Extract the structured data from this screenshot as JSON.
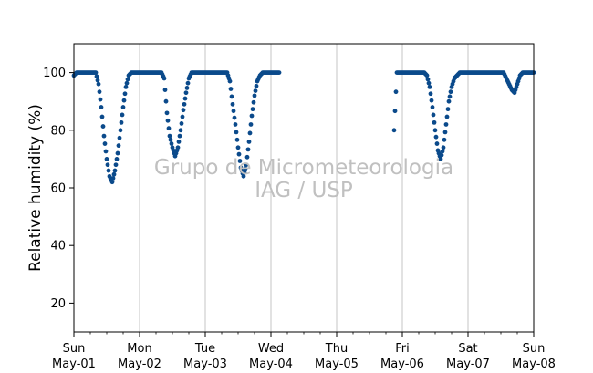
{
  "chart_data": {
    "type": "scatter",
    "ylabel": "Relative humidity (%)",
    "ylim": [
      10,
      110
    ],
    "yticks": [
      20,
      40,
      60,
      80,
      100
    ],
    "xlim": [
      "2022-05-01T00:00",
      "2022-05-08T00:00"
    ],
    "xticks": [
      {
        "date": "2022-05-01",
        "day": "Sun",
        "label": "May-01"
      },
      {
        "date": "2022-05-02",
        "day": "Mon",
        "label": "May-02"
      },
      {
        "date": "2022-05-03",
        "day": "Tue",
        "label": "May-03"
      },
      {
        "date": "2022-05-04",
        "day": "Wed",
        "label": "May-04"
      },
      {
        "date": "2022-05-05",
        "day": "Thu",
        "label": "May-05"
      },
      {
        "date": "2022-05-06",
        "day": "Fri",
        "label": "May-06"
      },
      {
        "date": "2022-05-07",
        "day": "Sat",
        "label": "May-07"
      },
      {
        "date": "2022-05-08",
        "day": "Sun",
        "label": "May-08"
      }
    ],
    "grid": "x",
    "color": "#0b4a8b",
    "watermark": [
      "Grupo de Micrometeorologia",
      "IAG / USP"
    ],
    "series": [
      {
        "x": [
          "2022-05-01T00:00",
          "2022-05-01T01:00",
          "2022-05-01T02:00",
          "2022-05-01T03:00",
          "2022-05-01T04:00",
          "2022-05-01T05:00",
          "2022-05-01T06:00",
          "2022-05-01T07:00",
          "2022-05-01T08:00",
          "2022-05-01T09:00",
          "2022-05-01T10:00",
          "2022-05-01T11:00",
          "2022-05-01T12:00",
          "2022-05-01T13:00",
          "2022-05-01T14:00",
          "2022-05-01T15:00",
          "2022-05-01T16:00",
          "2022-05-01T17:00",
          "2022-05-01T18:00",
          "2022-05-01T19:00",
          "2022-05-01T20:00",
          "2022-05-01T21:00",
          "2022-05-01T22:00",
          "2022-05-01T23:00",
          "2022-05-02T00:00",
          "2022-05-02T01:00",
          "2022-05-02T02:00",
          "2022-05-02T03:00",
          "2022-05-02T04:00",
          "2022-05-02T05:00",
          "2022-05-02T06:00",
          "2022-05-02T07:00",
          "2022-05-02T08:00",
          "2022-05-02T09:00",
          "2022-05-02T10:00",
          "2022-05-02T11:00",
          "2022-05-02T12:00",
          "2022-05-02T13:00",
          "2022-05-02T14:00",
          "2022-05-02T15:00",
          "2022-05-02T16:00",
          "2022-05-02T17:00",
          "2022-05-02T18:00",
          "2022-05-02T19:00",
          "2022-05-02T20:00",
          "2022-05-02T21:00",
          "2022-05-02T22:00",
          "2022-05-02T23:00",
          "2022-05-03T00:00",
          "2022-05-03T01:00",
          "2022-05-03T02:00",
          "2022-05-03T03:00",
          "2022-05-03T04:00",
          "2022-05-03T05:00",
          "2022-05-03T06:00",
          "2022-05-03T07:00",
          "2022-05-03T08:00",
          "2022-05-03T09:00",
          "2022-05-03T10:00",
          "2022-05-03T11:00",
          "2022-05-03T12:00",
          "2022-05-03T13:00",
          "2022-05-03T14:00",
          "2022-05-03T15:00",
          "2022-05-03T16:00",
          "2022-05-03T17:00",
          "2022-05-03T18:00",
          "2022-05-03T19:00",
          "2022-05-03T20:00",
          "2022-05-03T21:00",
          "2022-05-03T22:00",
          "2022-05-03T23:00",
          "2022-05-04T00:00",
          "2022-05-04T01:00",
          "2022-05-04T02:00",
          "2022-05-04T03:00",
          "2022-05-05T21:00",
          "2022-05-05T22:00",
          "2022-05-05T23:00",
          "2022-05-06T00:00",
          "2022-05-06T01:00",
          "2022-05-06T02:00",
          "2022-05-06T03:00",
          "2022-05-06T04:00",
          "2022-05-06T05:00",
          "2022-05-06T06:00",
          "2022-05-06T07:00",
          "2022-05-06T08:00",
          "2022-05-06T09:00",
          "2022-05-06T10:00",
          "2022-05-06T11:00",
          "2022-05-06T12:00",
          "2022-05-06T13:00",
          "2022-05-06T14:00",
          "2022-05-06T15:00",
          "2022-05-06T16:00",
          "2022-05-06T17:00",
          "2022-05-06T18:00",
          "2022-05-06T19:00",
          "2022-05-06T20:00",
          "2022-05-06T21:00",
          "2022-05-06T22:00",
          "2022-05-06T23:00",
          "2022-05-07T00:00",
          "2022-05-07T01:00",
          "2022-05-07T02:00",
          "2022-05-07T03:00",
          "2022-05-07T04:00",
          "2022-05-07T05:00",
          "2022-05-07T06:00",
          "2022-05-07T07:00",
          "2022-05-07T08:00",
          "2022-05-07T09:00",
          "2022-05-07T10:00",
          "2022-05-07T11:00",
          "2022-05-07T12:00",
          "2022-05-07T13:00",
          "2022-05-07T14:00",
          "2022-05-07T15:00",
          "2022-05-07T16:00",
          "2022-05-07T17:00",
          "2022-05-07T18:00",
          "2022-05-07T19:00",
          "2022-05-07T20:00",
          "2022-05-07T21:00",
          "2022-05-07T22:00",
          "2022-05-07T23:00",
          "2022-05-08T00:00"
        ],
        "y": [
          99,
          100,
          100,
          100,
          100,
          100,
          100,
          100,
          100,
          96,
          88,
          78,
          70,
          64,
          62,
          66,
          72,
          80,
          88,
          95,
          99,
          100,
          100,
          100,
          100,
          100,
          100,
          100,
          100,
          100,
          100,
          100,
          100,
          98,
          86,
          78,
          74,
          71,
          74,
          80,
          87,
          93,
          98,
          100,
          100,
          100,
          100,
          100,
          100,
          100,
          100,
          100,
          100,
          100,
          100,
          100,
          100,
          97,
          89,
          82,
          74,
          67,
          64,
          68,
          76,
          85,
          92,
          97,
          99,
          100,
          100,
          100,
          100,
          100,
          100,
          100,
          80,
          100,
          100,
          100,
          100,
          100,
          100,
          100,
          100,
          100,
          100,
          100,
          99,
          95,
          88,
          80,
          73,
          70,
          74,
          82,
          90,
          95,
          98,
          99,
          100,
          100,
          100,
          100,
          100,
          100,
          100,
          100,
          100,
          100,
          100,
          100,
          100,
          100,
          100,
          100,
          100,
          98,
          96,
          94,
          93,
          96,
          99,
          100,
          100,
          100,
          100,
          100
        ]
      }
    ]
  }
}
